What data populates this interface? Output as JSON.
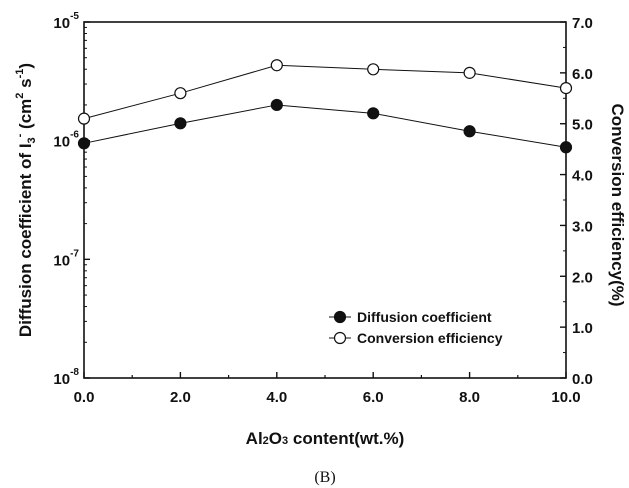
{
  "chart_data": {
    "type": "line",
    "x": [
      0.0,
      2.0,
      4.0,
      6.0,
      8.0,
      10.0
    ],
    "xlabel_parts": [
      "Al",
      "2",
      "O",
      "3",
      " content(wt.%)"
    ],
    "ylabel_left_parts": [
      "Diffusion coefficient of I",
      "3",
      "-",
      " (cm",
      "2",
      " s",
      "-1",
      ")"
    ],
    "ylabel_right": "Conversion efficiency(%)",
    "xlim": [
      0,
      10
    ],
    "ylim_left": [
      1e-08,
      1e-05
    ],
    "y_left_scale": "log",
    "ylim_right": [
      0,
      7
    ],
    "x_ticks": [
      "0.0",
      "2.0",
      "4.0",
      "6.0",
      "8.0",
      "10.0"
    ],
    "y_left_ticks": [
      {
        "base": "10",
        "exp": "-8"
      },
      {
        "base": "10",
        "exp": "-7"
      },
      {
        "base": "10",
        "exp": "-6"
      },
      {
        "base": "10",
        "exp": "-5"
      }
    ],
    "y_right_ticks": [
      "0.0",
      "1.0",
      "2.0",
      "3.0",
      "4.0",
      "5.0",
      "6.0",
      "7.0"
    ],
    "grid": false,
    "legend_position": "bottom-right",
    "series": [
      {
        "name": "Diffusion coefficient",
        "axis": "left",
        "marker": "filled-circle",
        "values": [
          9.5e-07,
          1.4e-06,
          2e-06,
          1.7e-06,
          1.2e-06,
          8.8e-07
        ]
      },
      {
        "name": "Conversion efficiency",
        "axis": "right",
        "marker": "open-circle",
        "values": [
          5.1,
          5.6,
          6.15,
          6.07,
          6.0,
          5.7
        ]
      }
    ],
    "caption": "(B)"
  }
}
